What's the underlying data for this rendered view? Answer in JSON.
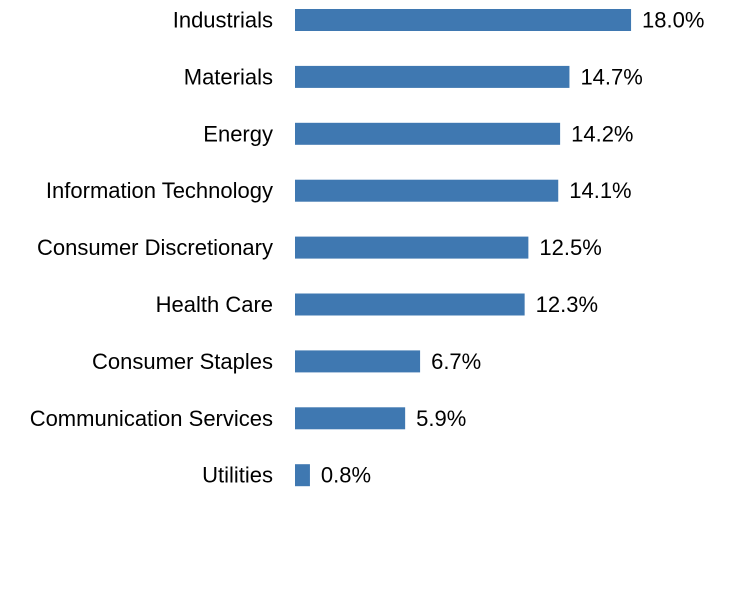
{
  "chart_data": {
    "type": "bar",
    "orientation": "horizontal",
    "categories": [
      "Industrials",
      "Materials",
      "Energy",
      "Information Technology",
      "Consumer Discretionary",
      "Health Care",
      "Consumer Staples",
      "Communication Services",
      "Utilities"
    ],
    "values": [
      18.0,
      14.7,
      14.2,
      14.1,
      12.5,
      12.3,
      6.7,
      5.9,
      0.8
    ],
    "value_labels": [
      "18.0%",
      "14.7%",
      "14.2%",
      "14.1%",
      "12.5%",
      "12.3%",
      "6.7%",
      "5.9%",
      "0.8%"
    ],
    "unit": "%",
    "bar_color": "#3f78b1",
    "grid": false,
    "legend": "none"
  }
}
